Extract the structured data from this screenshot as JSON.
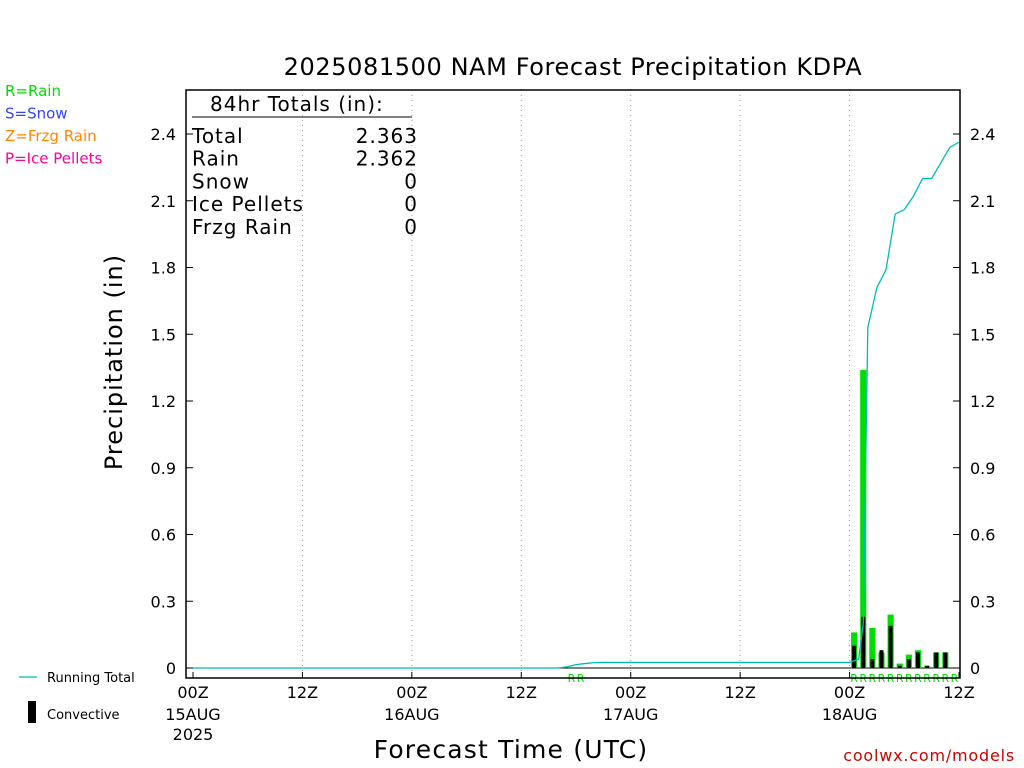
{
  "chart_data": {
    "type": "bar",
    "title": "2025081500 NAM Forecast Precipitation KDPA",
    "xlabel": "Forecast Time (UTC)",
    "ylabel": "Precipitation (in)",
    "ylim": [
      0,
      2.55
    ],
    "xlim_hours": [
      0,
      84
    ],
    "y_ticks": [
      "0",
      "0.3",
      "0.6",
      "0.9",
      "1.2",
      "1.5",
      "1.8",
      "2.1",
      "2.4"
    ],
    "x_ticks": [
      {
        "top": "00Z",
        "mid": "15AUG",
        "bot": "2025"
      },
      {
        "top": "12Z",
        "mid": "",
        "bot": ""
      },
      {
        "top": "00Z",
        "mid": "16AUG",
        "bot": ""
      },
      {
        "top": "12Z",
        "mid": "",
        "bot": ""
      },
      {
        "top": "00Z",
        "mid": "17AUG",
        "bot": ""
      },
      {
        "top": "12Z",
        "mid": "",
        "bot": ""
      },
      {
        "top": "00Z",
        "mid": "18AUG",
        "bot": ""
      },
      {
        "top": "12Z",
        "mid": "",
        "bot": ""
      }
    ],
    "grid": "vertical dotted every 12 hours",
    "series": [
      {
        "name": "Rain",
        "color": "#00dd00",
        "hours": [
          42,
          43,
          73,
          74,
          75,
          76,
          77,
          78,
          79,
          80,
          81,
          82,
          83
        ],
        "values": [
          0.005,
          0.005,
          0.16,
          1.34,
          0.18,
          0.07,
          0.24,
          0.02,
          0.06,
          0.08,
          0.01,
          0.07,
          0.07
        ]
      },
      {
        "name": "Convective",
        "color": "#000000",
        "hours": [
          73,
          74,
          75,
          76,
          77,
          78,
          79,
          80,
          81,
          82,
          83
        ],
        "values": [
          0.1,
          0.23,
          0.04,
          0.08,
          0.19,
          0.01,
          0.04,
          0.07,
          0.01,
          0.07,
          0.07
        ]
      },
      {
        "name": "Running Total",
        "color": "#00bbbb",
        "type": "line",
        "x": [
          0,
          40,
          41,
          42,
          43,
          44,
          45,
          72,
          73,
          73.5,
          74,
          75,
          76,
          77,
          78,
          79,
          80,
          81,
          82,
          83,
          84
        ],
        "y": [
          0,
          0,
          0.005,
          0.015,
          0.02,
          0.024,
          0.025,
          0.025,
          0.04,
          0.2,
          1.53,
          1.71,
          1.79,
          2.04,
          2.06,
          2.12,
          2.2,
          2.2,
          2.27,
          2.34,
          2.363
        ]
      }
    ],
    "type_markers": {
      "text": "R",
      "color": "#00dd00",
      "hours": [
        42,
        43,
        73,
        74,
        75,
        76,
        77,
        78,
        79,
        80,
        81,
        82,
        83,
        84
      ]
    },
    "totals_box": {
      "header": "84hr Totals (in):",
      "rows": [
        {
          "label": "Total",
          "value": "2.363"
        },
        {
          "label": "Rain",
          "value": "2.362"
        },
        {
          "label": "Snow",
          "value": "0"
        },
        {
          "label": "Ice Pellets",
          "value": "0"
        },
        {
          "label": "Frzg Rain",
          "value": "0"
        }
      ]
    },
    "ptype_legend": [
      {
        "text": "R=Rain",
        "color": "#00dd00"
      },
      {
        "text": "S=Snow",
        "color": "#3344ff"
      },
      {
        "text": "Z=Frzg Rain",
        "color": "#ff8800"
      },
      {
        "text": "P=Ice Pellets",
        "color": "#ff0099"
      }
    ],
    "bottom_legend": [
      {
        "text": "Running Total",
        "color": "#00bbbb"
      },
      {
        "text": "Convective",
        "color": "#000000"
      }
    ],
    "credit": {
      "text": "coolwx.com/models",
      "color": "#cc0000"
    }
  }
}
